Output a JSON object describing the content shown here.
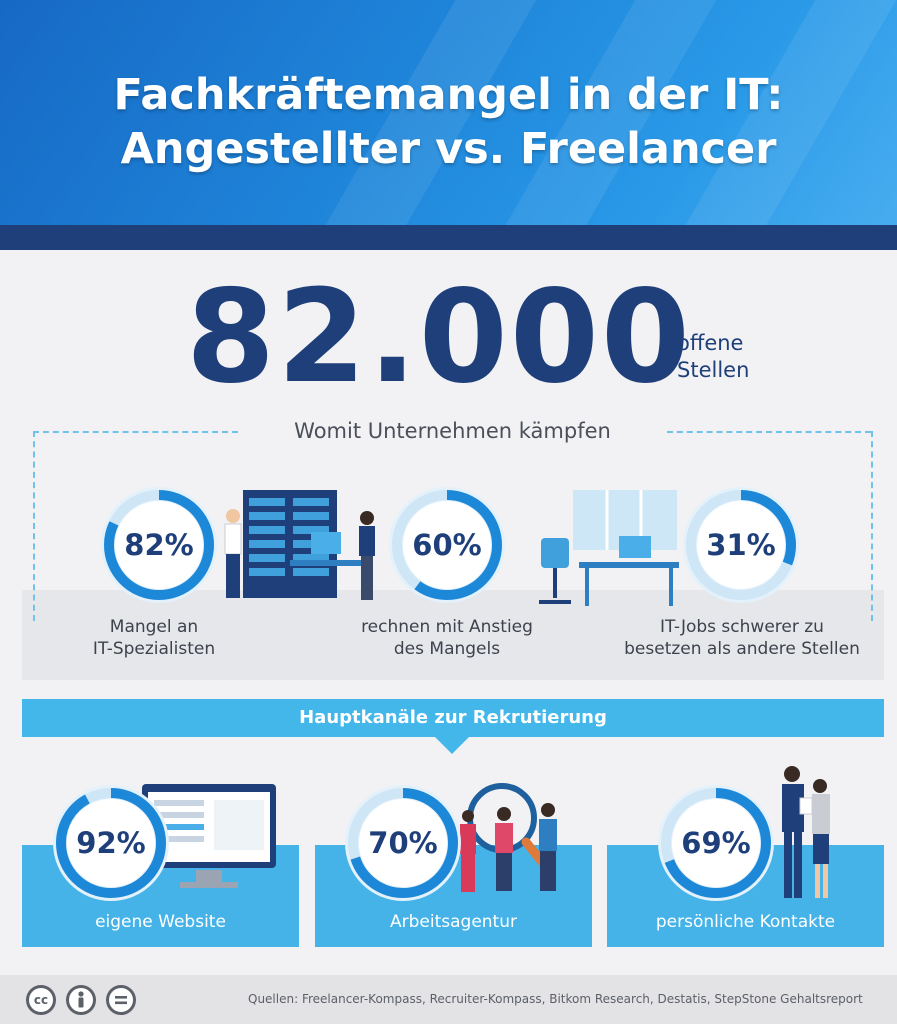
{
  "header": {
    "title_line1": "Fachkräftemangel in der IT:",
    "title_line2": "Angestellter vs. Freelancer"
  },
  "headline": {
    "number": "82.000",
    "label_line1": "offene",
    "label_line2": "Stellen"
  },
  "challenges": {
    "title": "Womit Unternehmen kämpfen",
    "items": [
      {
        "value": 82,
        "percent": "82%",
        "label_line1": "Mangel an",
        "label_line2": "IT-Spezialisten"
      },
      {
        "value": 60,
        "percent": "60%",
        "label_line1": "rechnen mit Anstieg",
        "label_line2": "des Mangels"
      },
      {
        "value": 31,
        "percent": "31%",
        "label_line1": "IT-Jobs schwerer zu",
        "label_line2": "besetzen als andere Stellen"
      }
    ]
  },
  "recruiting": {
    "title": "Hauptkanäle zur Rekrutierung",
    "items": [
      {
        "value": 92,
        "percent": "92%",
        "label": "eigene Website"
      },
      {
        "value": 70,
        "percent": "70%",
        "label": "Arbeitsagentur"
      },
      {
        "value": 69,
        "percent": "69%",
        "label": "persönliche Kontakte"
      }
    ]
  },
  "footer": {
    "license_icons": [
      "cc-icon",
      "by-person-icon",
      "nd-equals-icon"
    ],
    "cc_text": "cc",
    "sources": "Quellen: Freelancer-Kompass, Recruiter-Kompass, Bitkom Research, Destatis, StepStone Gehaltsreport"
  },
  "colors": {
    "navy": "#1e3f7a",
    "accent_blue": "#43b6ea",
    "ring_track": "#cfe6f6",
    "ring_fill": "#1e88d8"
  }
}
